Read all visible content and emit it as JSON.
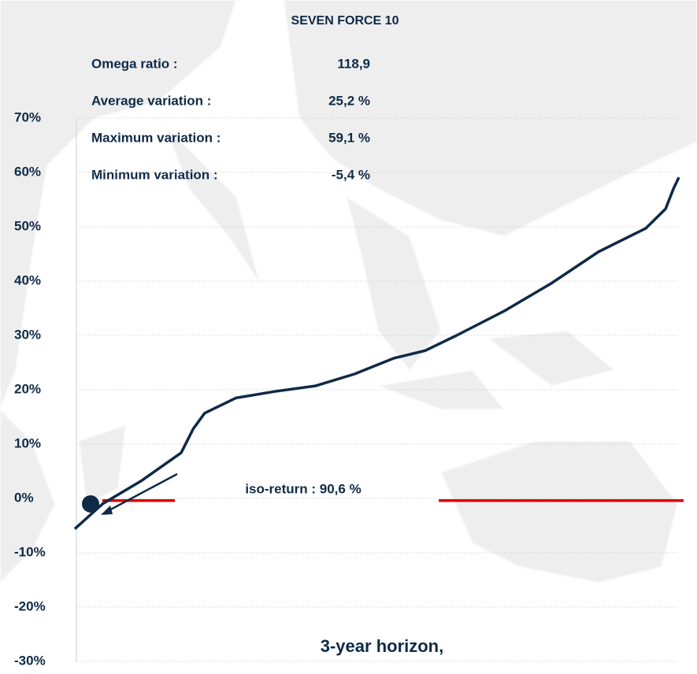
{
  "chart_data": {
    "type": "line",
    "title": "SEVEN FORCE 10",
    "stats": [
      {
        "label": "Omega ratio :",
        "value": "118,9"
      },
      {
        "label": "Average variation :",
        "value": "25,2 %"
      },
      {
        "label": "Maximum variation :",
        "value": "59,1 %"
      },
      {
        "label": "Minimum variation :",
        "value": "-5,4 %"
      }
    ],
    "annotation": "iso-return : 90,6 %",
    "footer": "3-year horizon,",
    "x": [
      0,
      4.6,
      11.1,
      17.6,
      19.6,
      21.5,
      26.7,
      33.2,
      39.8,
      46.3,
      52.8,
      58,
      63.2,
      71.1,
      78.9,
      86.7,
      94.5,
      97.8,
      99.1,
      100
    ],
    "series": [
      {
        "name": "Variation",
        "color": "#0e2a47",
        "values": [
          -5.6,
          -1,
          3.3,
          8.4,
          12.8,
          15.7,
          18.5,
          19.7,
          20.7,
          22.9,
          25.8,
          27.2,
          30,
          34.5,
          39.6,
          45.4,
          49.7,
          53.3,
          57,
          59.1
        ]
      }
    ],
    "iso_return": {
      "value": -0.4,
      "color": "#e00000"
    },
    "xlim": [
      0,
      100
    ],
    "ylim": [
      -30,
      70
    ],
    "yticks": [
      {
        "value": -30,
        "label": "-30%"
      },
      {
        "value": -20,
        "label": "-20%"
      },
      {
        "value": -10,
        "label": "-10%"
      },
      {
        "value": 0,
        "label": "0%"
      },
      {
        "value": 10,
        "label": "10%"
      },
      {
        "value": 20,
        "label": "20%"
      },
      {
        "value": 30,
        "label": "30%"
      },
      {
        "value": 40,
        "label": "40%"
      },
      {
        "value": 50,
        "label": "50%"
      },
      {
        "value": 60,
        "label": "60%"
      },
      {
        "value": 70,
        "label": "70%"
      }
    ],
    "grid": true
  }
}
